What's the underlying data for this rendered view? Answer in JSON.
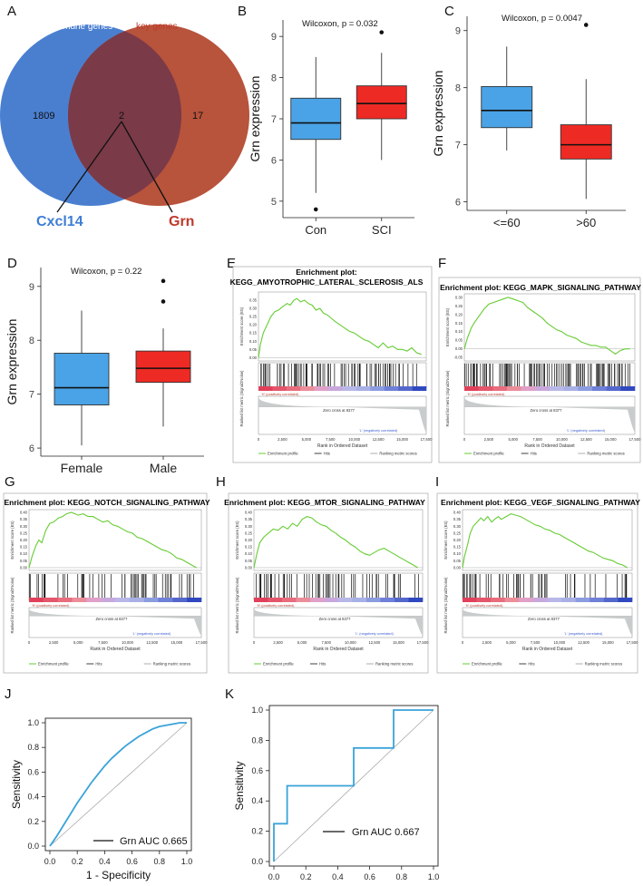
{
  "panels": {
    "A": {
      "letter": "A",
      "set1_label": "Immune genes",
      "set2_label": "key genes",
      "only1": "1809",
      "both": "2",
      "only2": "17",
      "gene1": "Cxcl14",
      "gene2": "Grn",
      "colors": {
        "set1": "#4a7fd0",
        "set2": "#b8533c",
        "overlap": "#7a3a48",
        "gene1": "#3f7ed6",
        "gene2": "#c0392b"
      }
    },
    "B": {
      "letter": "B",
      "stat": "Wilcoxon, p = 0.032"
    },
    "C": {
      "letter": "C",
      "stat": "Wilcoxon, p = 0.0047"
    },
    "D": {
      "letter": "D",
      "stat": "Wilcoxon, p = 0.22"
    },
    "E": {
      "letter": "E",
      "title1": "Enrichment plot:",
      "title2": "KEGG_AMYOTROPHIC_LATERAL_SCLEROSIS_ALS"
    },
    "F": {
      "letter": "F",
      "title": "Enrichment plot: KEGG_MAPK_SIGNALING_PATHWAY"
    },
    "G": {
      "letter": "G",
      "title": "Enrichment plot: KEGG_NOTCH_SIGNALING_PATHWAY"
    },
    "H": {
      "letter": "H",
      "title": "Enrichment plot: KEGG_MTOR_SIGNALING_PATHWAY"
    },
    "I": {
      "letter": "I",
      "title": "Enrichment plot: KEGG_VEGF_SIGNALING_PATHWAY"
    },
    "J": {
      "letter": "J",
      "legend": "Grn AUC 0.665"
    },
    "K": {
      "letter": "K",
      "legend": "Grn AUC 0.667"
    }
  },
  "gsea_common": {
    "es_ylabel": "Enrichment score (ES)",
    "metric_ylabel": "Ranked list metric (Signal2Noise)",
    "xlabel": "Rank in Ordered Dataset",
    "pos_label": "'H' (positively correlated)",
    "neg_label": "'L' (negatively correlated)",
    "zero_cross": "Zero cross at 8377",
    "legend": [
      "Enrichment profile",
      "Hits",
      "Ranking metric scores"
    ],
    "xticks": [
      "0",
      "2,500",
      "5,000",
      "7,500",
      "10,000",
      "12,500",
      "15,000",
      "17,500"
    ],
    "curve_color": "#66cc33"
  },
  "chart_data": [
    {
      "panel": "B",
      "type": "box",
      "categories": [
        "Con",
        "SCI"
      ],
      "ylabel": "Grn expression",
      "ylim": [
        4.6,
        9.4
      ],
      "yticks": [
        5,
        6,
        7,
        8,
        9
      ],
      "colors": [
        "#4aa3e6",
        "#ee2a24"
      ],
      "boxes": [
        {
          "whisker_low": 5.2,
          "q1": 6.5,
          "median": 6.9,
          "q3": 7.5,
          "whisker_high": 8.5,
          "outliers": [
            4.8
          ]
        },
        {
          "whisker_low": 6.0,
          "q1": 7.0,
          "median": 7.37,
          "q3": 7.8,
          "whisker_high": 8.6,
          "outliers": [
            9.1
          ]
        }
      ]
    },
    {
      "panel": "C",
      "type": "box",
      "categories": [
        "<=60",
        ">60"
      ],
      "ylabel": "Grn expression",
      "ylim": [
        5.85,
        9.25
      ],
      "yticks": [
        6,
        7,
        8,
        9
      ],
      "colors": [
        "#4aa3e6",
        "#ee2a24"
      ],
      "boxes": [
        {
          "whisker_low": 6.9,
          "q1": 7.3,
          "median": 7.6,
          "q3": 8.02,
          "whisker_high": 8.72,
          "outliers": []
        },
        {
          "whisker_low": 6.05,
          "q1": 6.75,
          "median": 7.0,
          "q3": 7.35,
          "whisker_high": 8.15,
          "outliers": [
            9.1
          ]
        }
      ]
    },
    {
      "panel": "D",
      "type": "box",
      "categories": [
        "Female",
        "Male"
      ],
      "ylabel": "Grn expression",
      "ylim": [
        5.85,
        9.35
      ],
      "yticks": [
        6,
        7,
        8,
        9
      ],
      "colors": [
        "#4aa3e6",
        "#ee2a24"
      ],
      "boxes": [
        {
          "whisker_low": 6.05,
          "q1": 6.8,
          "median": 7.12,
          "q3": 7.76,
          "whisker_high": 8.55,
          "outliers": []
        },
        {
          "whisker_low": 6.4,
          "q1": 7.22,
          "median": 7.48,
          "q3": 7.8,
          "whisker_high": 8.22,
          "outliers": [
            8.72,
            9.1
          ]
        }
      ]
    },
    {
      "panel": "E",
      "type": "line",
      "xlim": [
        0,
        17500
      ],
      "ylim": [
        -0.02,
        0.4
      ],
      "yticks": [
        0.0,
        0.05,
        0.1,
        0.15,
        0.2,
        0.25,
        0.3,
        0.35
      ],
      "x": [
        0,
        200,
        500,
        900,
        1300,
        1700,
        2100,
        2500,
        3000,
        3300,
        3700,
        4000,
        4400,
        4800,
        5200,
        5600,
        6000,
        6400,
        6800,
        7200,
        7600,
        8000,
        8500,
        9000,
        9500,
        10000,
        10500,
        11000,
        11500,
        12000,
        12500,
        13000,
        13500,
        14000,
        14500,
        15000,
        15500,
        16000,
        16500,
        17000
      ],
      "y": [
        0.0,
        0.08,
        0.15,
        0.2,
        0.25,
        0.28,
        0.29,
        0.31,
        0.33,
        0.32,
        0.35,
        0.36,
        0.34,
        0.35,
        0.33,
        0.32,
        0.29,
        0.3,
        0.27,
        0.26,
        0.24,
        0.22,
        0.2,
        0.18,
        0.16,
        0.15,
        0.13,
        0.11,
        0.1,
        0.08,
        0.06,
        0.09,
        0.06,
        0.07,
        0.05,
        0.05,
        0.04,
        0.06,
        0.03,
        0.02
      ]
    },
    {
      "panel": "F",
      "type": "line",
      "xlim": [
        0,
        17500
      ],
      "ylim": [
        -0.07,
        0.32
      ],
      "yticks": [
        -0.05,
        0.0,
        0.05,
        0.1,
        0.15,
        0.2,
        0.25,
        0.3
      ],
      "x": [
        0,
        300,
        700,
        1000,
        1500,
        2000,
        2500,
        3000,
        3500,
        4000,
        4500,
        5000,
        5500,
        6000,
        6500,
        7000,
        7500,
        8000,
        8500,
        9000,
        9500,
        10000,
        10500,
        11000,
        11500,
        12000,
        12500,
        13000,
        13500,
        14000,
        14500,
        15000,
        15500,
        16000,
        16500,
        17000
      ],
      "y": [
        0.0,
        0.06,
        0.12,
        0.15,
        0.19,
        0.23,
        0.26,
        0.27,
        0.28,
        0.29,
        0.3,
        0.29,
        0.28,
        0.27,
        0.24,
        0.22,
        0.2,
        0.18,
        0.15,
        0.13,
        0.11,
        0.1,
        0.08,
        0.07,
        0.06,
        0.04,
        0.03,
        0.02,
        0.02,
        0.01,
        0.01,
        -0.01,
        -0.03,
        -0.01,
        0.0,
        0.0
      ]
    },
    {
      "panel": "G",
      "type": "line",
      "xlim": [
        0,
        17500
      ],
      "ylim": [
        -0.02,
        0.42
      ],
      "yticks": [
        0.0,
        0.05,
        0.1,
        0.15,
        0.2,
        0.25,
        0.3,
        0.35,
        0.4
      ],
      "x": [
        0,
        300,
        700,
        1000,
        1300,
        1700,
        2100,
        2500,
        3000,
        3400,
        3800,
        4300,
        5000,
        5500,
        6000,
        6500,
        7000,
        7500,
        8000,
        8500,
        9000,
        9500,
        10000,
        10500,
        11000,
        11500,
        12000,
        12500,
        13000,
        13500,
        14000,
        14500,
        15000,
        15500,
        16000,
        16500,
        17000
      ],
      "y": [
        0.0,
        0.08,
        0.16,
        0.2,
        0.18,
        0.27,
        0.32,
        0.33,
        0.36,
        0.37,
        0.39,
        0.4,
        0.38,
        0.39,
        0.37,
        0.37,
        0.35,
        0.33,
        0.34,
        0.31,
        0.3,
        0.28,
        0.26,
        0.25,
        0.22,
        0.21,
        0.19,
        0.17,
        0.15,
        0.13,
        0.12,
        0.1,
        0.07,
        0.06,
        0.04,
        0.02,
        0.0
      ]
    },
    {
      "panel": "H",
      "type": "line",
      "xlim": [
        0,
        17500
      ],
      "ylim": [
        -0.02,
        0.42
      ],
      "yticks": [
        0.0,
        0.05,
        0.1,
        0.15,
        0.2,
        0.25,
        0.3,
        0.35,
        0.4
      ],
      "x": [
        0,
        300,
        600,
        1000,
        1500,
        2000,
        2500,
        3000,
        3500,
        4000,
        4500,
        5000,
        5500,
        6000,
        6500,
        7000,
        7500,
        8000,
        8500,
        9000,
        9500,
        10000,
        10500,
        11000,
        11500,
        12000,
        12500,
        13000,
        13500,
        14000,
        14500,
        15000,
        15500,
        16000,
        16500,
        17000
      ],
      "y": [
        0.0,
        0.1,
        0.18,
        0.22,
        0.25,
        0.28,
        0.27,
        0.3,
        0.28,
        0.32,
        0.3,
        0.35,
        0.37,
        0.36,
        0.33,
        0.31,
        0.3,
        0.27,
        0.25,
        0.22,
        0.2,
        0.17,
        0.15,
        0.12,
        0.1,
        0.09,
        0.11,
        0.13,
        0.14,
        0.12,
        0.1,
        0.08,
        0.06,
        0.04,
        0.02,
        0.0
      ]
    },
    {
      "panel": "I",
      "type": "line",
      "xlim": [
        0,
        17500
      ],
      "ylim": [
        -0.02,
        0.42
      ],
      "yticks": [
        0.0,
        0.05,
        0.1,
        0.15,
        0.2,
        0.25,
        0.3,
        0.35,
        0.4
      ],
      "x": [
        0,
        200,
        500,
        800,
        1100,
        1500,
        1900,
        2200,
        2600,
        3000,
        3300,
        3700,
        4000,
        4500,
        5000,
        5500,
        6000,
        6500,
        7000,
        7500,
        8000,
        8500,
        9000,
        9500,
        10000,
        10500,
        11000,
        11500,
        12000,
        12500,
        13000,
        13500,
        14000,
        14500,
        15000,
        15500,
        16000,
        16500,
        17000
      ],
      "y": [
        0.0,
        0.08,
        0.16,
        0.25,
        0.3,
        0.33,
        0.36,
        0.34,
        0.37,
        0.33,
        0.35,
        0.37,
        0.35,
        0.37,
        0.39,
        0.38,
        0.37,
        0.35,
        0.33,
        0.31,
        0.3,
        0.28,
        0.27,
        0.25,
        0.24,
        0.22,
        0.2,
        0.18,
        0.16,
        0.14,
        0.12,
        0.11,
        0.09,
        0.07,
        0.06,
        0.05,
        0.03,
        0.02,
        0.0
      ]
    },
    {
      "panel": "J",
      "type": "line",
      "xlabel": "1 - Specificity",
      "ylabel": "Sensitivity",
      "xlim": [
        0,
        1
      ],
      "ylim": [
        0,
        1
      ],
      "xticks": [
        0.0,
        0.2,
        0.4,
        0.6,
        0.8,
        1.0
      ],
      "yticks": [
        0.0,
        0.2,
        0.4,
        0.6,
        0.8,
        1.0
      ],
      "series": [
        {
          "name": "Grn AUC 0.665",
          "color": "#3aa3d9",
          "x": [
            0.0,
            0.05,
            0.1,
            0.15,
            0.2,
            0.25,
            0.3,
            0.35,
            0.4,
            0.45,
            0.5,
            0.55,
            0.6,
            0.65,
            0.7,
            0.75,
            0.8,
            0.85,
            0.9,
            0.95,
            1.0
          ],
          "y": [
            0.0,
            0.08,
            0.17,
            0.26,
            0.35,
            0.43,
            0.51,
            0.58,
            0.65,
            0.71,
            0.76,
            0.81,
            0.85,
            0.89,
            0.92,
            0.95,
            0.97,
            0.98,
            0.99,
            1.0,
            1.0
          ]
        }
      ]
    },
    {
      "panel": "K",
      "type": "line",
      "xlabel": "1 - Specificity",
      "ylabel": "Sensitivity",
      "xlim": [
        0,
        1
      ],
      "ylim": [
        0,
        1
      ],
      "xticks": [
        0.0,
        0.2,
        0.4,
        0.6,
        0.8,
        1.0
      ],
      "yticks": [
        0.0,
        0.2,
        0.4,
        0.6,
        0.8,
        1.0
      ],
      "series": [
        {
          "name": "Grn AUC 0.667",
          "color": "#3aa3d9",
          "x": [
            0.0,
            0.0,
            0.0,
            0.083,
            0.083,
            0.5,
            0.5,
            0.75,
            0.75,
            1.0
          ],
          "y": [
            0.0,
            0.25,
            0.25,
            0.25,
            0.5,
            0.5,
            0.75,
            0.75,
            1.0,
            1.0
          ]
        }
      ]
    }
  ]
}
